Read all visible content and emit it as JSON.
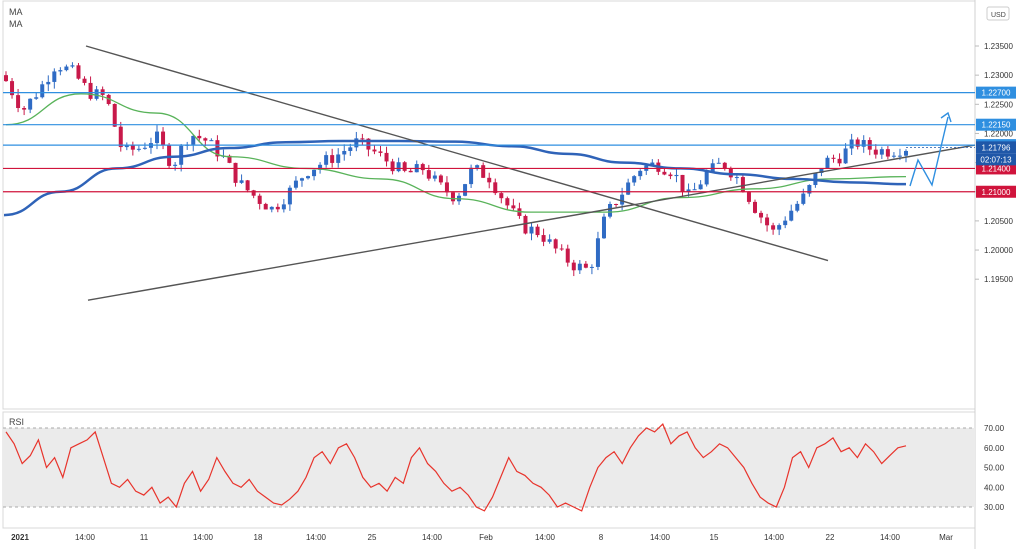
{
  "indicator_labels": [
    "MA",
    "MA"
  ],
  "rsi_label": "RSI",
  "currency_button": "USD",
  "colors": {
    "up": "#2f6bc4",
    "down": "#c8194a",
    "ma_slow": "#2f63b8",
    "ma_fast": "#59b35a",
    "trendline": "#555555",
    "resistance": "#2f8fe0",
    "support": "#d0143c",
    "rsi": "#e8342c",
    "projection": "#2f8fe0"
  },
  "chart_data": [
    {
      "type": "candlestick",
      "title": "",
      "xlabel": "",
      "ylabel": "",
      "ylim": [
        1.1925,
        1.2375
      ],
      "y_ticks": [
        "1.19500",
        "1.20000",
        "1.20500",
        "1.21000",
        "1.21500",
        "1.22000",
        "1.22500",
        "1.23000",
        "1.23500"
      ],
      "x_ticks": [
        "2021",
        "14:00",
        "11",
        "14:00",
        "18",
        "14:00",
        "25",
        "14:00",
        "Feb",
        "14:00",
        "8",
        "14:00",
        "15",
        "14:00",
        "22",
        "14:00",
        "Mar"
      ],
      "price_close_approx": [
        1.229,
        1.224,
        1.2275,
        1.232,
        1.2305,
        1.227,
        1.2262,
        1.2168,
        1.2175,
        1.2195,
        1.2145,
        1.22,
        1.2188,
        1.216,
        1.2115,
        1.209,
        1.207,
        1.21,
        1.2135,
        1.215,
        1.2165,
        1.2185,
        1.217,
        1.215,
        1.213,
        1.214,
        1.211,
        1.209,
        1.214,
        1.2125,
        1.208,
        1.204,
        1.203,
        1.2,
        1.1975,
        1.1965,
        1.206,
        1.21,
        1.214,
        1.2148,
        1.2135,
        1.209,
        1.213,
        1.215,
        1.212,
        1.207,
        1.203,
        1.2065,
        1.2095,
        1.215,
        1.216,
        1.2185,
        1.2172,
        1.217,
        1.2176
      ],
      "ma_slow_approx": [
        1.206,
        1.21,
        1.214,
        1.216,
        1.2175,
        1.2185,
        1.2187,
        1.2187,
        1.2186,
        1.2178,
        1.2165,
        1.215,
        1.214,
        1.213,
        1.2122,
        1.2116,
        1.2113
      ],
      "ma_fast_approx": [
        1.2215,
        1.2268,
        1.2235,
        1.216,
        1.214,
        1.2122,
        1.2088,
        1.2065,
        1.2065,
        1.209,
        1.2105,
        1.2122,
        1.2126
      ],
      "horizontal_levels": [
        {
          "label": "1.22700",
          "kind": "resistance"
        },
        {
          "label": "1.22150",
          "kind": "resistance"
        },
        {
          "label": "1.21800",
          "kind": "resistance"
        },
        {
          "label": "1.21400",
          "kind": "support"
        },
        {
          "label": "1.21000",
          "kind": "support"
        }
      ],
      "current_price": {
        "label": "1.21796",
        "value": 1.21796,
        "countdown": "02:07:13"
      }
    },
    {
      "type": "line",
      "title": "RSI",
      "ylim": [
        25,
        75
      ],
      "y_ticks": [
        "30.00",
        "40.00",
        "50.00",
        "60.00",
        "70.00"
      ],
      "band": [
        30,
        70
      ],
      "values_approx": [
        68,
        62,
        52,
        56,
        64,
        50,
        55,
        45,
        60,
        62,
        64,
        68,
        55,
        42,
        40,
        44,
        38,
        36,
        40,
        32,
        35,
        30,
        42,
        48,
        38,
        44,
        55,
        48,
        42,
        40,
        44,
        38,
        35,
        32,
        31,
        34,
        38,
        45,
        55,
        58,
        52,
        60,
        62,
        55,
        45,
        40,
        42,
        38,
        45,
        42,
        55,
        60,
        52,
        48,
        42,
        38,
        40,
        36,
        30,
        28,
        35,
        45,
        55,
        48,
        46,
        42,
        40,
        36,
        30,
        32,
        30,
        28,
        40,
        50,
        55,
        58,
        52,
        60,
        66,
        70,
        68,
        72,
        62,
        66,
        68,
        60,
        55,
        58,
        62,
        60,
        55,
        50,
        42,
        35,
        32,
        30,
        40,
        55,
        58,
        50,
        60,
        62,
        65,
        58,
        60,
        55,
        62,
        58,
        52,
        56,
        60,
        61
      ]
    }
  ]
}
